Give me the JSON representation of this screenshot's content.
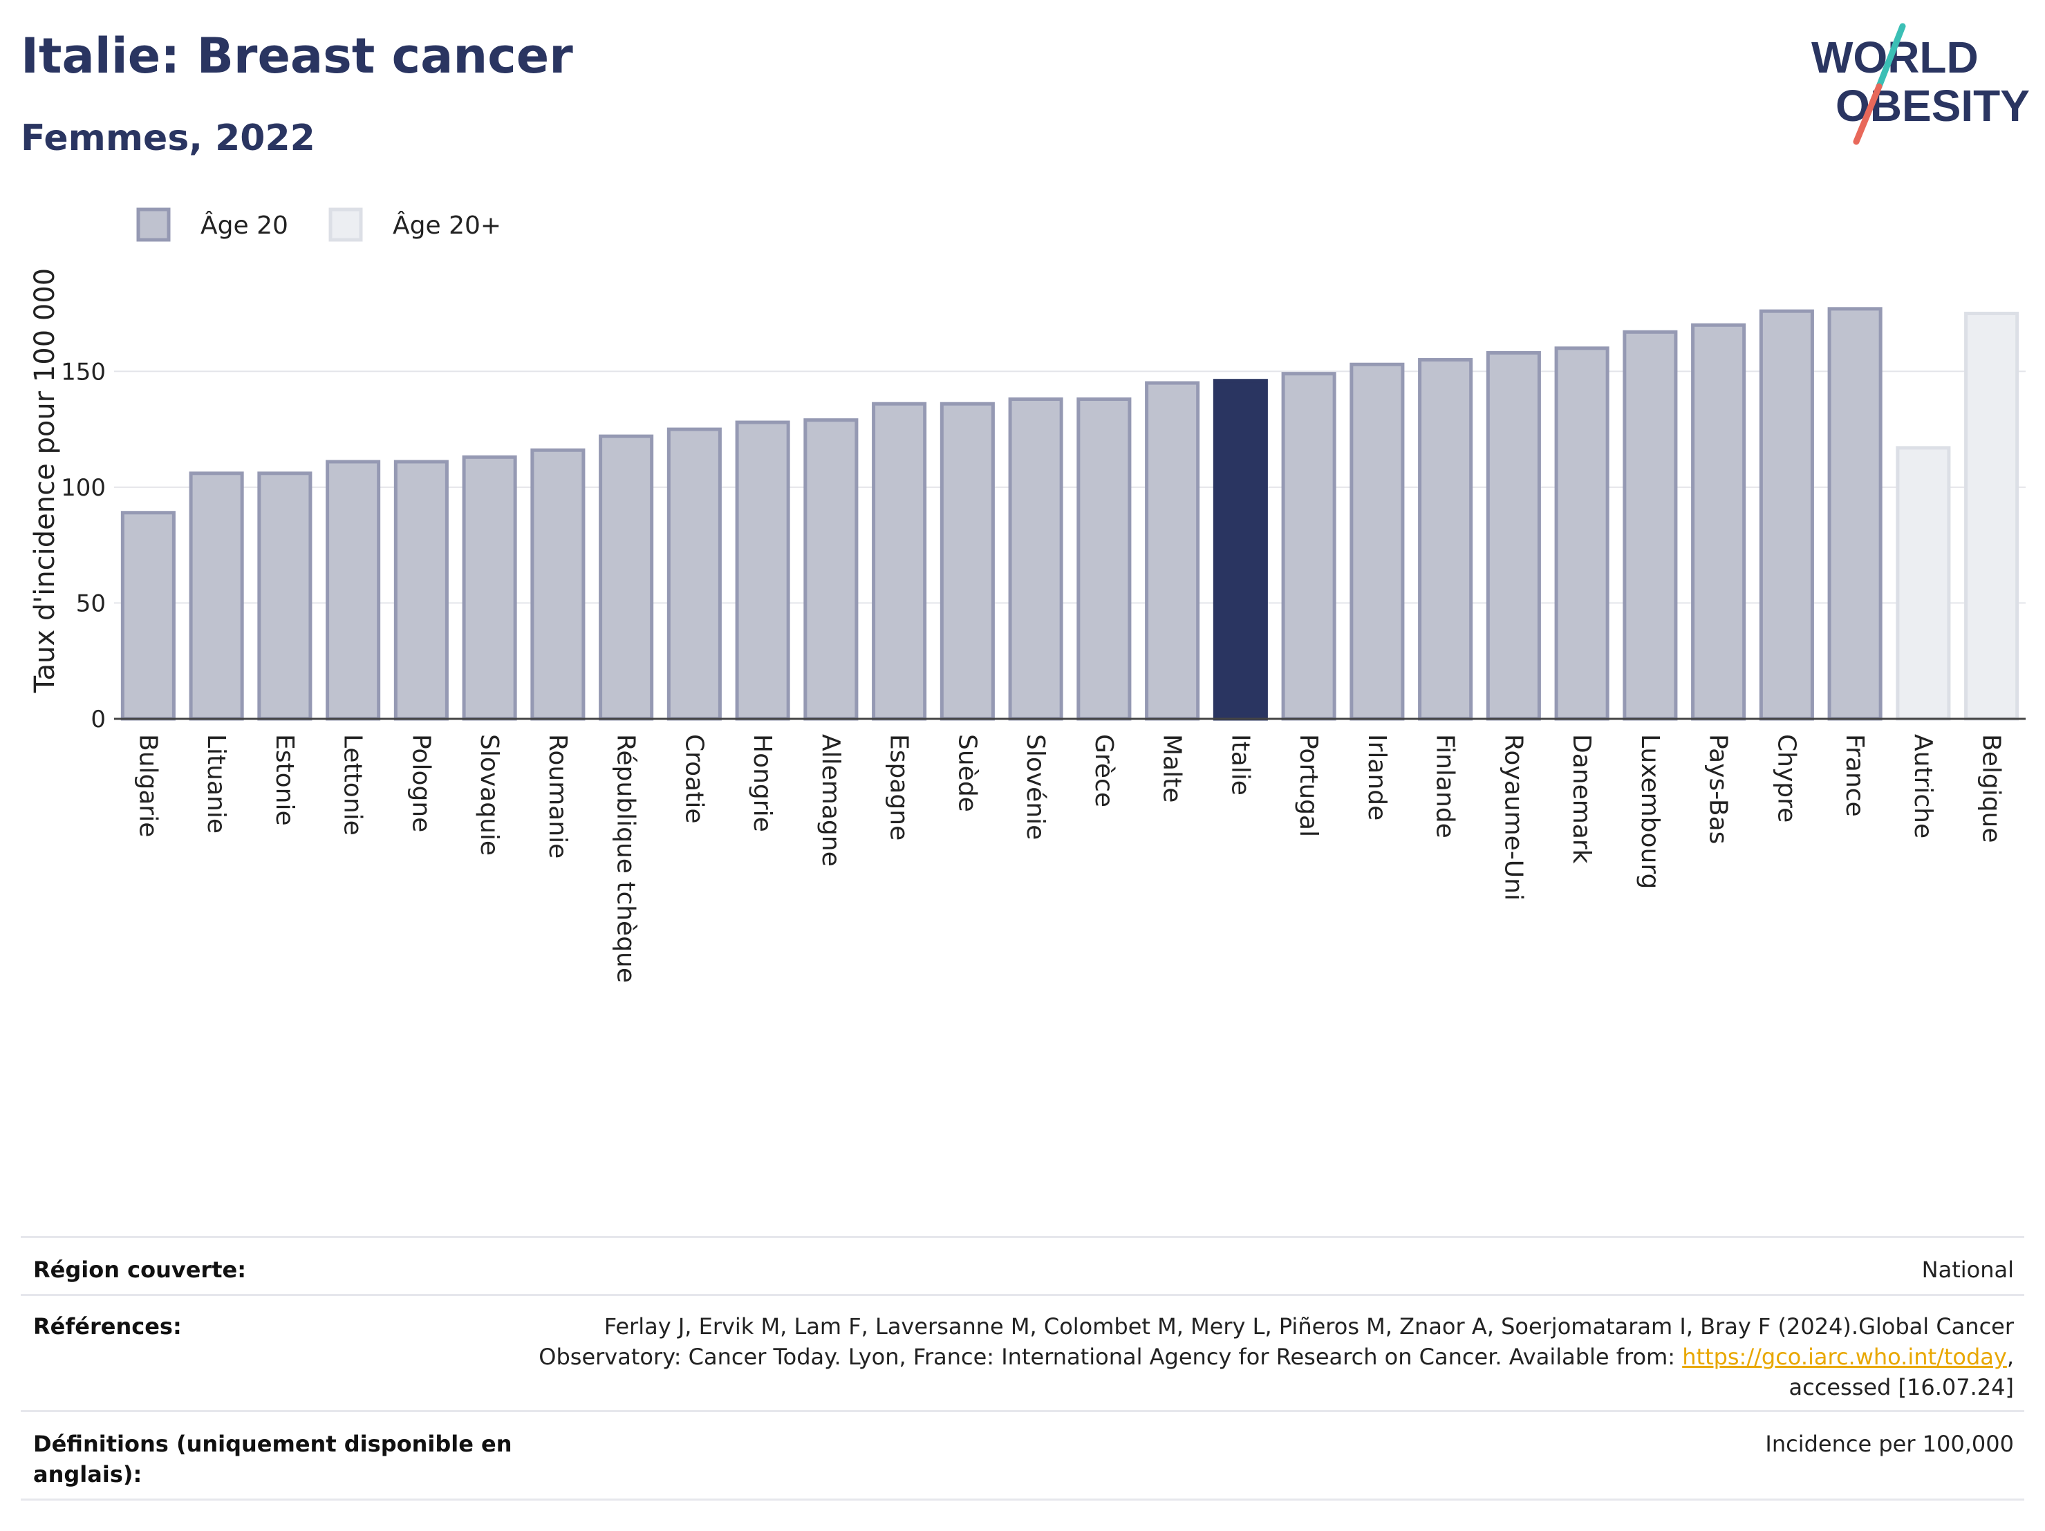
{
  "header": {
    "title": "Italie: Breast cancer",
    "subtitle": "Femmes, 2022",
    "logo_text_line1": "WORLD",
    "logo_text_line2": "OBESITY"
  },
  "colors": {
    "title": "#2a3561",
    "bar_age20": "#bfc2cf",
    "bar_age20_border": "#9599b3",
    "bar_age20plus": "#eceef2",
    "bar_age20plus_border": "#dcdfe6",
    "highlight": "#2a3561",
    "logo_slash_teal": "#3bbfb5",
    "logo_slash_coral": "#e8685a"
  },
  "chart_data": {
    "type": "bar",
    "ylabel": "Taux d'incidence pour 100 000",
    "xlabel": "",
    "ylim": [
      0,
      185
    ],
    "yticks": [
      0,
      50,
      100,
      150
    ],
    "grid": true,
    "legend_position": "top-left",
    "legend": [
      {
        "label": "Âge 20",
        "series": "age20"
      },
      {
        "label": "Âge 20+",
        "series": "age20plus"
      }
    ],
    "highlight": "Italie",
    "categories": [
      "Bulgarie",
      "Lituanie",
      "Estonie",
      "Lettonie",
      "Pologne",
      "Slovaquie",
      "Roumanie",
      "République tchèque",
      "Croatie",
      "Hongrie",
      "Allemagne",
      "Espagne",
      "Suède",
      "Slovénie",
      "Grèce",
      "Malte",
      "Italie",
      "Portugal",
      "Irlande",
      "Finlande",
      "Royaume-Uni",
      "Danemark",
      "Luxembourg",
      "Pays-Bas",
      "Chypre",
      "France",
      "Autriche",
      "Belgique"
    ],
    "values": [
      89,
      106,
      106,
      111,
      111,
      113,
      116,
      122,
      125,
      128,
      129,
      136,
      136,
      138,
      138,
      145,
      146,
      149,
      153,
      155,
      158,
      160,
      167,
      170,
      176,
      177,
      117,
      175
    ],
    "groups": [
      "age20",
      "age20",
      "age20",
      "age20",
      "age20",
      "age20",
      "age20",
      "age20",
      "age20",
      "age20",
      "age20",
      "age20",
      "age20",
      "age20",
      "age20",
      "age20",
      "age20",
      "age20",
      "age20",
      "age20",
      "age20",
      "age20",
      "age20",
      "age20",
      "age20",
      "age20",
      "age20plus",
      "age20plus"
    ]
  },
  "footer": {
    "rows": [
      {
        "label": "Région couverte:",
        "value": "National"
      },
      {
        "label": "Références:",
        "value_line1": "Ferlay J, Ervik M, Lam F, Laversanne M, Colombet M, Mery L, Piñeros M, Znaor A, Soerjomataram I, Bray F (2024).Global Cancer",
        "value_line2_pre": "Observatory: Cancer Today. Lyon, France: International Agency for Research on Cancer. Available from: ",
        "value_link": "https://gco.iarc.who.int/today",
        "value_line2_post": ",",
        "value_line3": "accessed [16.07.24]"
      },
      {
        "label_line1": "Définitions (uniquement disponible en",
        "label_line2": "anglais):",
        "value": "Incidence per 100,000"
      }
    ]
  }
}
